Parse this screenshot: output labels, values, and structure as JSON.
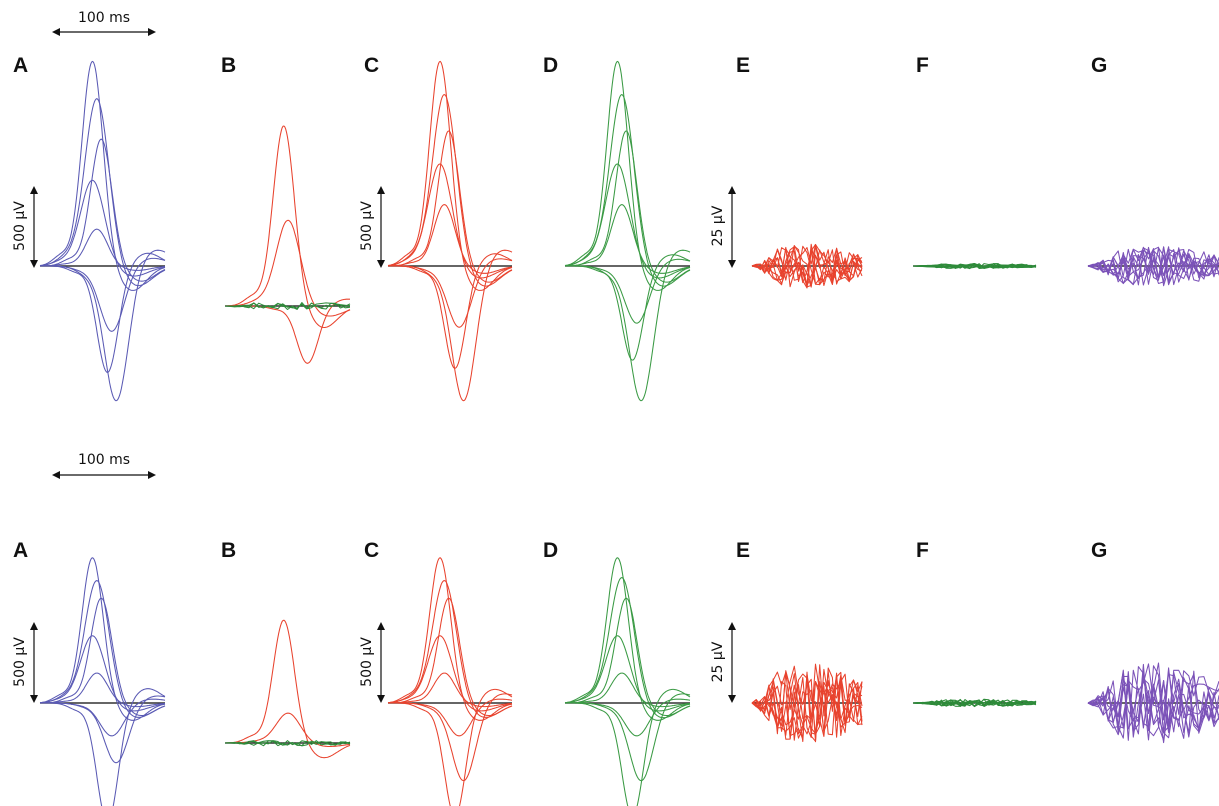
{
  "panel_letters": [
    "A",
    "B",
    "C",
    "D",
    "E",
    "F",
    "G"
  ],
  "scale_bars": {
    "time_label": "100 ms",
    "voltage_large": "500 µV",
    "voltage_small": "25 µV"
  },
  "colors": {
    "A": "#5a5ab4",
    "B_main": "#e8432e",
    "B_secondary": "#2e8b3a",
    "C": "#e8432e",
    "D": "#3a9a44",
    "E": "#e8432e",
    "F": "#2e8b3a",
    "G": "#7b52b8",
    "baseline": "#333333"
  },
  "chart_data": [
    {
      "type": "line",
      "row": "top",
      "panels": [
        {
          "letter": "A",
          "traces": [
            {
              "kind": "spike",
              "amps": [
                1.0,
                0.82,
                0.62,
                0.42,
                0.18,
                -0.66,
                -0.52,
                -0.32
              ],
              "units": "µV scale 500"
            }
          ]
        },
        {
          "letter": "B",
          "traces": [
            {
              "kind": "spike",
              "amps": [
                0.88,
                0.42,
                -0.28
              ],
              "note": "red spikes plus flat green traces"
            }
          ]
        },
        {
          "letter": "C",
          "traces": [
            {
              "kind": "spike",
              "amps": [
                1.0,
                0.84,
                0.66,
                0.5,
                0.3,
                -0.66,
                -0.5,
                -0.3
              ]
            }
          ]
        },
        {
          "letter": "D",
          "traces": [
            {
              "kind": "spike",
              "amps": [
                1.0,
                0.84,
                0.66,
                0.5,
                0.3,
                -0.66,
                -0.46,
                -0.28
              ]
            }
          ]
        },
        {
          "letter": "E",
          "traces": [
            {
              "kind": "residual",
              "amplitude": 0.6,
              "units": "µV scale 25"
            }
          ]
        },
        {
          "letter": "F",
          "traces": [
            {
              "kind": "residual",
              "amplitude": 0.07
            }
          ]
        },
        {
          "letter": "G",
          "traces": [
            {
              "kind": "residual",
              "amplitude": 0.55
            }
          ]
        }
      ]
    },
    {
      "type": "line",
      "row": "bottom",
      "panels": [
        {
          "letter": "A",
          "traces": [
            {
              "kind": "spike",
              "amps": [
                0.97,
                0.82,
                0.7,
                0.45,
                0.2,
                -0.4,
                -0.8,
                -0.22
              ]
            }
          ]
        },
        {
          "letter": "B",
          "traces": [
            {
              "kind": "spike",
              "amps": [
                0.82,
                0.2
              ],
              "note": "red spikes plus low green traces"
            }
          ]
        },
        {
          "letter": "C",
          "traces": [
            {
              "kind": "spike",
              "amps": [
                0.97,
                0.82,
                0.7,
                0.45,
                0.2,
                -0.52,
                -0.76,
                -0.22
              ]
            }
          ]
        },
        {
          "letter": "D",
          "traces": [
            {
              "kind": "spike",
              "amps": [
                0.97,
                0.84,
                0.7,
                0.45,
                0.2,
                -0.52,
                -0.76,
                -0.22
              ]
            }
          ]
        },
        {
          "letter": "E",
          "traces": [
            {
              "kind": "residual",
              "amplitude": 1.5
            }
          ]
        },
        {
          "letter": "F",
          "traces": [
            {
              "kind": "residual",
              "amplitude": 0.14
            }
          ]
        },
        {
          "letter": "G",
          "traces": [
            {
              "kind": "residual",
              "amplitude": 1.5
            }
          ]
        }
      ]
    }
  ]
}
